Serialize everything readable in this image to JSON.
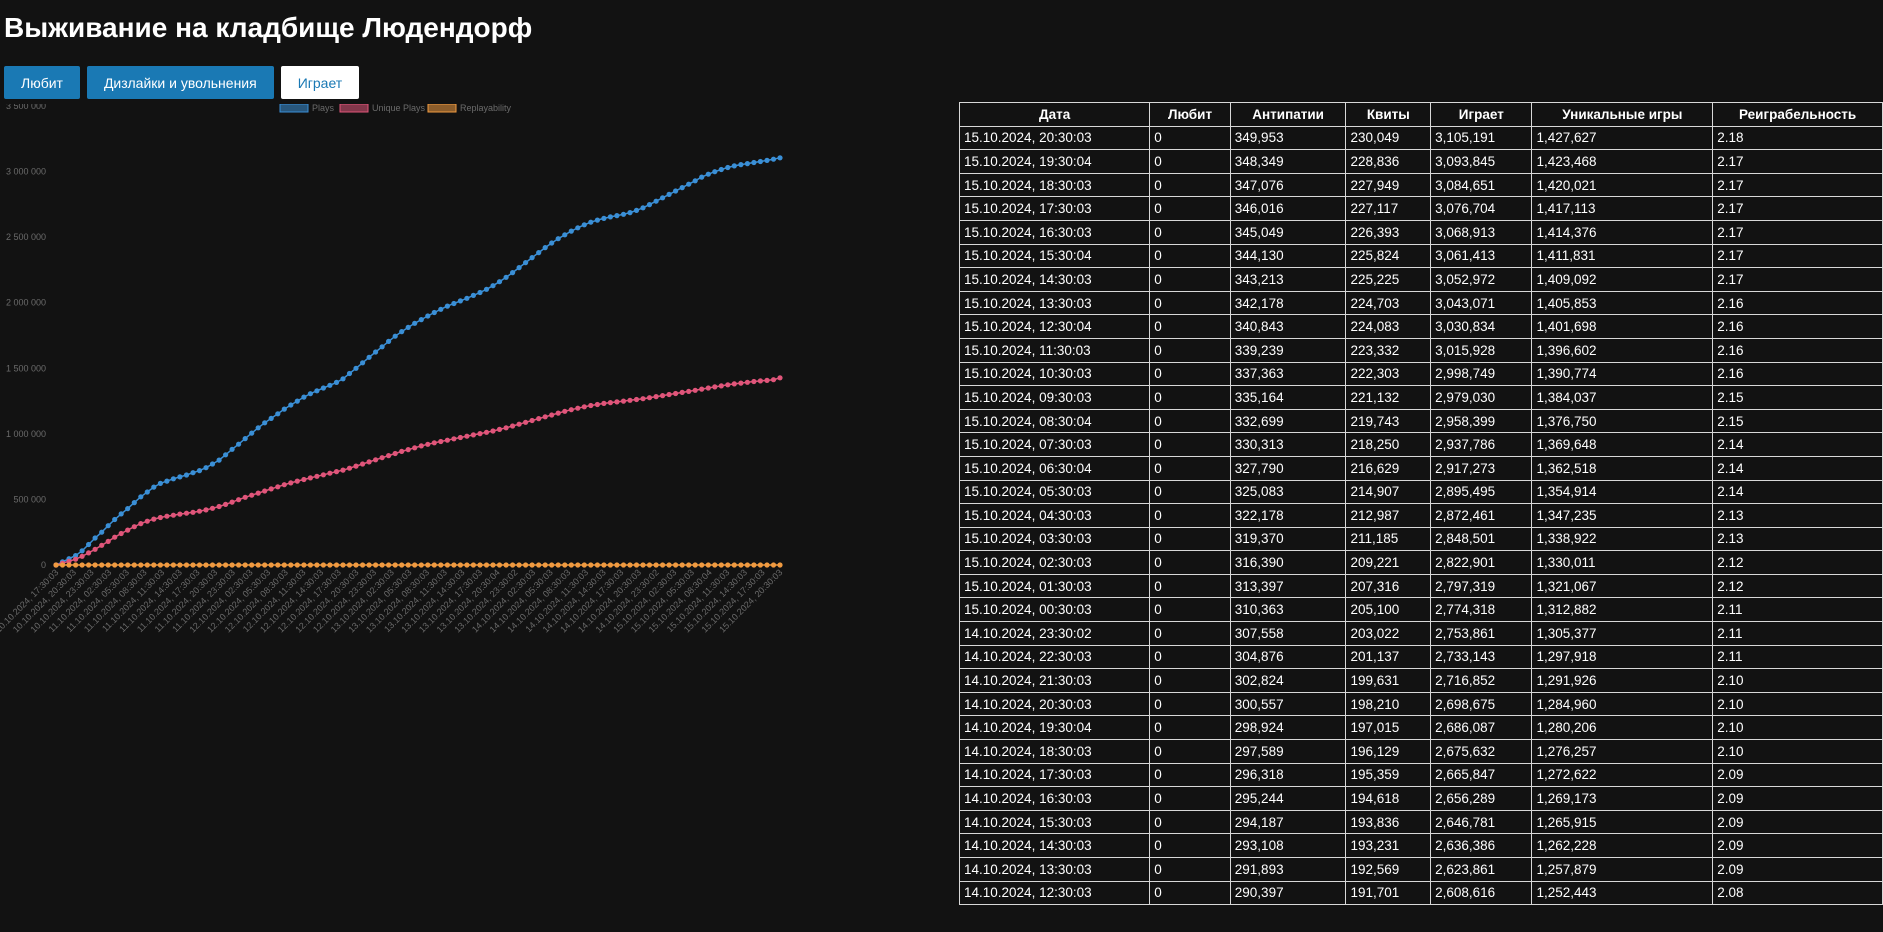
{
  "page": {
    "title": "Выживание на кладбище Людендорф"
  },
  "tabs": [
    {
      "label": "Любит",
      "active": false
    },
    {
      "label": "Дизлайки и увольнения",
      "active": false
    },
    {
      "label": "Играет",
      "active": true
    }
  ],
  "colors": {
    "background": "#121212",
    "tab_active_bg": "#ffffff",
    "tab_bg": "#1a79b4",
    "plays": "#3a8fd6",
    "unique_plays": "#e0557a",
    "replayability": "#f09a40"
  },
  "chart_data": {
    "type": "line",
    "legend_position": "top",
    "grid": false,
    "ylim": [
      0,
      3500000
    ],
    "y_ticks": [
      0,
      500000,
      1000000,
      1500000,
      2000000,
      2500000,
      3000000,
      3500000
    ],
    "y_tick_labels": [
      "0",
      "500 000",
      "1 000 000",
      "1 500 000",
      "2 000 000",
      "2 500 000",
      "3 000 000",
      "3 500 000"
    ],
    "x_start": "10.10.2024, 17:30:03",
    "x_tick_labels": [
      "10.10.2024, 17:30:03",
      "10.10.2024, 20:30:03",
      "10.10.2024, 23:30:03",
      "11.10.2024, 02:30:03",
      "11.10.2024, 05:30:03",
      "11.10.2024, 08:30:03",
      "11.10.2024, 11:30:03",
      "11.10.2024, 14:30:03",
      "11.10.2024, 17:30:03",
      "11.10.2024, 20:30:03",
      "11.10.2024, 23:30:03",
      "12.10.2024, 02:30:03",
      "12.10.2024, 05:30:03",
      "12.10.2024, 08:30:03",
      "12.10.2024, 11:30:03",
      "12.10.2024, 14:30:03",
      "12.10.2024, 17:30:03",
      "12.10.2024, 20:30:03",
      "12.10.2024, 23:30:03",
      "13.10.2024, 02:30:03",
      "13.10.2024, 05:30:03",
      "13.10.2024, 08:30:03",
      "13.10.2024, 11:30:03",
      "13.10.2024, 14:30:03",
      "13.10.2024, 17:30:03",
      "13.10.2024, 20:30:04",
      "13.10.2024, 23:30:02",
      "14.10.2024, 02:30:03",
      "14.10.2024, 05:30:03",
      "14.10.2024, 08:30:03",
      "14.10.2024, 11:30:03",
      "14.10.2024, 14:30:03",
      "14.10.2024, 17:30:03",
      "14.10.2024, 20:30:03",
      "14.10.2024, 23:30:02",
      "15.10.2024, 02:30:03",
      "15.10.2024, 05:30:03",
      "15.10.2024, 08:30:04",
      "15.10.2024, 11:30:03",
      "15.10.2024, 14:30:03",
      "15.10.2024, 17:30:03",
      "15.10.2024, 20:30:03"
    ],
    "series": [
      {
        "name": "Plays",
        "color": "#3a8fd6",
        "values": [
          0,
          24000,
          48000,
          72000,
          108000,
          156000,
          206000,
          250000,
          300000,
          347000,
          390000,
          430000,
          476000,
          520000,
          557000,
          594000,
          622000,
          640000,
          657000,
          672000,
          686000,
          704000,
          720000,
          742000,
          770000,
          800000,
          840000,
          882000,
          921000,
          964000,
          1006000,
          1046000,
          1084000,
          1118000,
          1153000,
          1189000,
          1220000,
          1250000,
          1280000,
          1306000,
          1328000,
          1350000,
          1370000,
          1392000,
          1420000,
          1460000,
          1500000,
          1542000,
          1584000,
          1624000,
          1664000,
          1705000,
          1745000,
          1780000,
          1812000,
          1843000,
          1871000,
          1899000,
          1925000,
          1950000,
          1974000,
          1994000,
          2014000,
          2034000,
          2056000,
          2078000,
          2102000,
          2130000,
          2160000,
          2194000,
          2230000,
          2268000,
          2306000,
          2344000,
          2382000,
          2420000,
          2455000,
          2488000,
          2518000,
          2546000,
          2571000,
          2594000,
          2614000,
          2630000,
          2643000,
          2654000,
          2664000,
          2674000,
          2687000,
          2704000,
          2724000,
          2748000,
          2774000,
          2800000,
          2826000,
          2852000,
          2878000,
          2904000,
          2930000,
          2958000,
          2980000,
          2999000,
          3016000,
          3031000,
          3043000,
          3053000,
          3061000,
          3069000,
          3077000,
          3085000,
          3094000,
          3105191
        ]
      },
      {
        "name": "Unique Plays",
        "color": "#e0557a",
        "values": [
          0,
          14000,
          28000,
          44000,
          66000,
          92000,
          120000,
          150000,
          180000,
          212000,
          240000,
          266000,
          292000,
          316000,
          334000,
          350000,
          362000,
          372000,
          380000,
          388000,
          395000,
          402000,
          410000,
          420000,
          432000,
          446000,
          462000,
          480000,
          498000,
          516000,
          532000,
          548000,
          564000,
          580000,
          596000,
          612000,
          626000,
          640000,
          652000,
          664000,
          676000,
          688000,
          700000,
          712000,
          724000,
          738000,
          754000,
          770000,
          786000,
          802000,
          818000,
          834000,
          850000,
          866000,
          880000,
          894000,
          908000,
          920000,
          932000,
          942000,
          952000,
          962000,
          972000,
          982000,
          992000,
          1002000,
          1012000,
          1022000,
          1034000,
          1046000,
          1060000,
          1074000,
          1088000,
          1102000,
          1116000,
          1130000,
          1144000,
          1158000,
          1172000,
          1184000,
          1196000,
          1206000,
          1216000,
          1224000,
          1232000,
          1238000,
          1244000,
          1250000,
          1256000,
          1262000,
          1268000,
          1276000,
          1284000,
          1292000,
          1300000,
          1308000,
          1316000,
          1324000,
          1332000,
          1341000,
          1350000,
          1358000,
          1366000,
          1374000,
          1381000,
          1387000,
          1393000,
          1399000,
          1404000,
          1408000,
          1413000,
          1427627
        ]
      },
      {
        "name": "Replayability",
        "color": "#f09a40",
        "values_note_is_constant": false,
        "values": [
          0,
          1.7,
          1.7,
          1.6,
          1.6,
          1.7,
          1.7,
          1.7,
          1.7,
          1.6,
          1.6,
          1.6,
          1.6,
          1.6,
          1.7,
          1.7,
          1.7,
          1.7,
          1.7,
          1.7,
          1.7,
          1.8,
          1.8,
          1.8,
          1.8,
          1.8,
          1.8,
          1.8,
          1.8,
          1.9,
          1.9,
          1.9,
          1.9,
          1.9,
          1.9,
          1.9,
          1.9,
          2.0,
          2.0,
          2.0,
          2.0,
          2.0,
          2.0,
          2.0,
          2.0,
          2.0,
          2.0,
          2.0,
          2.0,
          2.0,
          2.0,
          2.0,
          2.0,
          2.0,
          2.1,
          2.1,
          2.1,
          2.1,
          2.1,
          2.1,
          2.1,
          2.1,
          2.1,
          2.1,
          2.1,
          2.1,
          2.1,
          2.1,
          2.1,
          2.1,
          2.1,
          2.1,
          2.1,
          2.1,
          2.1,
          2.1,
          2.1,
          2.1,
          2.1,
          2.1,
          2.1,
          2.1,
          2.1,
          2.1,
          2.1,
          2.1,
          2.1,
          2.1,
          2.1,
          2.1,
          2.1,
          2.1,
          2.1,
          2.1,
          2.1,
          2.1,
          2.1,
          2.1,
          2.1,
          2.1,
          2.1,
          2.1,
          2.1,
          2.2,
          2.2,
          2.2,
          2.2,
          2.2,
          2.2,
          2.2,
          2.2,
          2.18
        ]
      }
    ]
  },
  "table": {
    "headers": [
      "Дата",
      "Любит",
      "Антипатии",
      "Квиты",
      "Играет",
      "Уникальные игры",
      "Реиграбельность"
    ],
    "rows": [
      [
        "15.10.2024, 20:30:03",
        "0",
        "349,953",
        "230,049",
        "3,105,191",
        "1,427,627",
        "2.18"
      ],
      [
        "15.10.2024, 19:30:04",
        "0",
        "348,349",
        "228,836",
        "3,093,845",
        "1,423,468",
        "2.17"
      ],
      [
        "15.10.2024, 18:30:03",
        "0",
        "347,076",
        "227,949",
        "3,084,651",
        "1,420,021",
        "2.17"
      ],
      [
        "15.10.2024, 17:30:03",
        "0",
        "346,016",
        "227,117",
        "3,076,704",
        "1,417,113",
        "2.17"
      ],
      [
        "15.10.2024, 16:30:03",
        "0",
        "345,049",
        "226,393",
        "3,068,913",
        "1,414,376",
        "2.17"
      ],
      [
        "15.10.2024, 15:30:04",
        "0",
        "344,130",
        "225,824",
        "3,061,413",
        "1,411,831",
        "2.17"
      ],
      [
        "15.10.2024, 14:30:03",
        "0",
        "343,213",
        "225,225",
        "3,052,972",
        "1,409,092",
        "2.17"
      ],
      [
        "15.10.2024, 13:30:03",
        "0",
        "342,178",
        "224,703",
        "3,043,071",
        "1,405,853",
        "2.16"
      ],
      [
        "15.10.2024, 12:30:04",
        "0",
        "340,843",
        "224,083",
        "3,030,834",
        "1,401,698",
        "2.16"
      ],
      [
        "15.10.2024, 11:30:03",
        "0",
        "339,239",
        "223,332",
        "3,015,928",
        "1,396,602",
        "2.16"
      ],
      [
        "15.10.2024, 10:30:03",
        "0",
        "337,363",
        "222,303",
        "2,998,749",
        "1,390,774",
        "2.16"
      ],
      [
        "15.10.2024, 09:30:03",
        "0",
        "335,164",
        "221,132",
        "2,979,030",
        "1,384,037",
        "2.15"
      ],
      [
        "15.10.2024, 08:30:04",
        "0",
        "332,699",
        "219,743",
        "2,958,399",
        "1,376,750",
        "2.15"
      ],
      [
        "15.10.2024, 07:30:03",
        "0",
        "330,313",
        "218,250",
        "2,937,786",
        "1,369,648",
        "2.14"
      ],
      [
        "15.10.2024, 06:30:04",
        "0",
        "327,790",
        "216,629",
        "2,917,273",
        "1,362,518",
        "2.14"
      ],
      [
        "15.10.2024, 05:30:03",
        "0",
        "325,083",
        "214,907",
        "2,895,495",
        "1,354,914",
        "2.14"
      ],
      [
        "15.10.2024, 04:30:03",
        "0",
        "322,178",
        "212,987",
        "2,872,461",
        "1,347,235",
        "2.13"
      ],
      [
        "15.10.2024, 03:30:03",
        "0",
        "319,370",
        "211,185",
        "2,848,501",
        "1,338,922",
        "2.13"
      ],
      [
        "15.10.2024, 02:30:03",
        "0",
        "316,390",
        "209,221",
        "2,822,901",
        "1,330,011",
        "2.12"
      ],
      [
        "15.10.2024, 01:30:03",
        "0",
        "313,397",
        "207,316",
        "2,797,319",
        "1,321,067",
        "2.12"
      ],
      [
        "15.10.2024, 00:30:03",
        "0",
        "310,363",
        "205,100",
        "2,774,318",
        "1,312,882",
        "2.11"
      ],
      [
        "14.10.2024, 23:30:02",
        "0",
        "307,558",
        "203,022",
        "2,753,861",
        "1,305,377",
        "2.11"
      ],
      [
        "14.10.2024, 22:30:03",
        "0",
        "304,876",
        "201,137",
        "2,733,143",
        "1,297,918",
        "2.11"
      ],
      [
        "14.10.2024, 21:30:03",
        "0",
        "302,824",
        "199,631",
        "2,716,852",
        "1,291,926",
        "2.10"
      ],
      [
        "14.10.2024, 20:30:03",
        "0",
        "300,557",
        "198,210",
        "2,698,675",
        "1,284,960",
        "2.10"
      ],
      [
        "14.10.2024, 19:30:04",
        "0",
        "298,924",
        "197,015",
        "2,686,087",
        "1,280,206",
        "2.10"
      ],
      [
        "14.10.2024, 18:30:03",
        "0",
        "297,589",
        "196,129",
        "2,675,632",
        "1,276,257",
        "2.10"
      ],
      [
        "14.10.2024, 17:30:03",
        "0",
        "296,318",
        "195,359",
        "2,665,847",
        "1,272,622",
        "2.09"
      ],
      [
        "14.10.2024, 16:30:03",
        "0",
        "295,244",
        "194,618",
        "2,656,289",
        "1,269,173",
        "2.09"
      ],
      [
        "14.10.2024, 15:30:03",
        "0",
        "294,187",
        "193,836",
        "2,646,781",
        "1,265,915",
        "2.09"
      ],
      [
        "14.10.2024, 14:30:03",
        "0",
        "293,108",
        "193,231",
        "2,636,386",
        "1,262,228",
        "2.09"
      ],
      [
        "14.10.2024, 13:30:03",
        "0",
        "291,893",
        "192,569",
        "2,623,861",
        "1,257,879",
        "2.09"
      ],
      [
        "14.10.2024, 12:30:03",
        "0",
        "290,397",
        "191,701",
        "2,608,616",
        "1,252,443",
        "2.08"
      ]
    ]
  }
}
